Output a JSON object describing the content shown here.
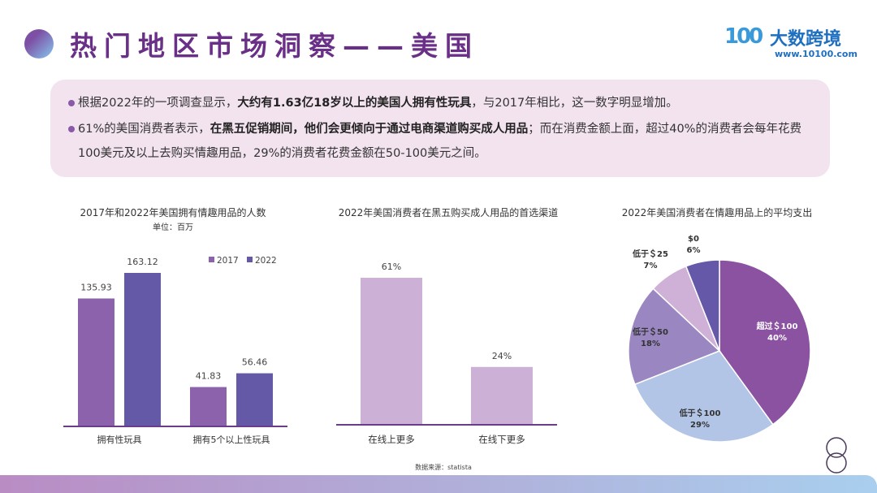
{
  "header": {
    "title": "热门地区市场洞察——美国",
    "logo_mark": "100",
    "logo_name": "大数跨境",
    "logo_url": "www.10100.com"
  },
  "bullets": [
    {
      "parts": [
        {
          "t": "根据2022年的一项调查显示，",
          "b": false
        },
        {
          "t": "大约有1.63亿18岁以上的美国人拥有性玩具",
          "b": true
        },
        {
          "t": "，与2017年相比，这一数字明显增加。",
          "b": false
        }
      ]
    },
    {
      "parts": [
        {
          "t": "61%的美国消费者表示，",
          "b": false
        },
        {
          "t": "在黑五促销期间，他们会更倾向于通过电商渠道购买成人用品",
          "b": true
        },
        {
          "t": "；而在消费金额上面，超过40%的消费者会每年花费100美元及以上去购买情趣用品，29%的消费者花费金额在50-100美元之间。",
          "b": false
        }
      ]
    }
  ],
  "source": "数据来源：statista",
  "page_number": "8",
  "colors": {
    "s2017": "#8b62ab",
    "s2022": "#6459a7",
    "channel": "#cdb0d6",
    "title": "#6a2f86"
  },
  "chart_data": [
    {
      "type": "bar",
      "title": "2017年和2022年美国拥有情趣用品的人数",
      "subtitle": "单位：百万",
      "categories": [
        "拥有性玩具",
        "拥有5个以上性玩具"
      ],
      "series": [
        {
          "name": "2017",
          "values": [
            135.93,
            41.83
          ]
        },
        {
          "name": "2022",
          "values": [
            163.12,
            56.46
          ]
        }
      ],
      "legend": "top-right"
    },
    {
      "type": "bar",
      "title": "2022年美国消费者在黑五购买成人用品的首选渠道",
      "categories": [
        "在线上更多",
        "在线下更多"
      ],
      "values": [
        61,
        24
      ],
      "labels": [
        "61%",
        "24%"
      ]
    },
    {
      "type": "pie",
      "title": "2022年美国消费者在情趣用品上的平均支出",
      "slices": [
        {
          "label": "超过＄100",
          "value": 40,
          "color": "#8b52a1"
        },
        {
          "label": "低于＄100",
          "value": 29,
          "color": "#b2c5e7"
        },
        {
          "label": "低于＄50",
          "value": 18,
          "color": "#9a87c1"
        },
        {
          "label": "低于＄25",
          "value": 7,
          "color": "#cfb1d7"
        },
        {
          "label": "$0",
          "value": 6,
          "color": "#6558a8"
        }
      ]
    }
  ]
}
